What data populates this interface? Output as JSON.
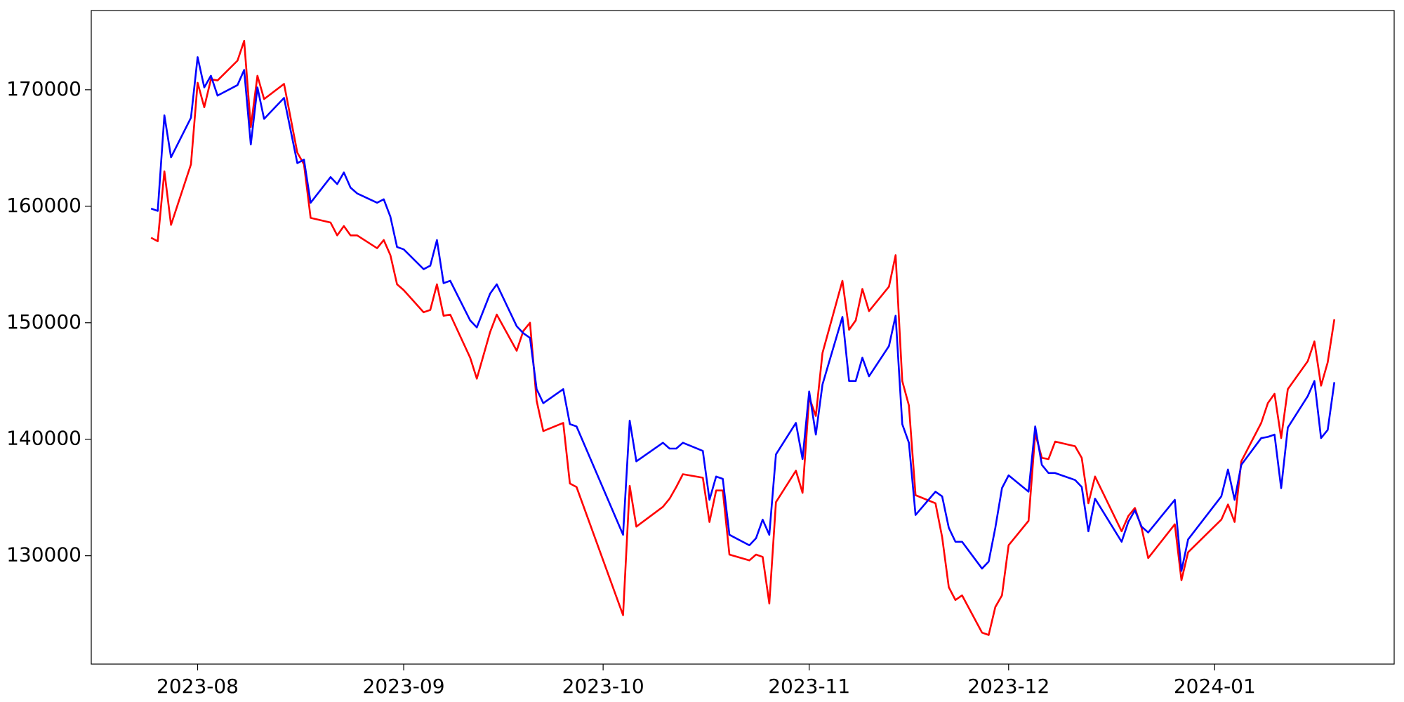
{
  "chart_data": {
    "type": "line",
    "x": [
      "2023-07-25",
      "2023-07-26",
      "2023-07-27",
      "2023-07-28",
      "2023-07-31",
      "2023-08-01",
      "2023-08-02",
      "2023-08-03",
      "2023-08-04",
      "2023-08-07",
      "2023-08-08",
      "2023-08-09",
      "2023-08-10",
      "2023-08-11",
      "2023-08-14",
      "2023-08-16",
      "2023-08-17",
      "2023-08-18",
      "2023-08-21",
      "2023-08-22",
      "2023-08-23",
      "2023-08-24",
      "2023-08-25",
      "2023-08-28",
      "2023-08-29",
      "2023-08-30",
      "2023-08-31",
      "2023-09-01",
      "2023-09-04",
      "2023-09-05",
      "2023-09-06",
      "2023-09-07",
      "2023-09-08",
      "2023-09-11",
      "2023-09-12",
      "2023-09-14",
      "2023-09-15",
      "2023-09-18",
      "2023-09-19",
      "2023-09-20",
      "2023-09-21",
      "2023-09-22",
      "2023-09-25",
      "2023-09-26",
      "2023-09-27",
      "2023-10-04",
      "2023-10-05",
      "2023-10-06",
      "2023-10-10",
      "2023-10-11",
      "2023-10-12",
      "2023-10-13",
      "2023-10-16",
      "2023-10-17",
      "2023-10-18",
      "2023-10-19",
      "2023-10-20",
      "2023-10-23",
      "2023-10-24",
      "2023-10-25",
      "2023-10-26",
      "2023-10-27",
      "2023-10-30",
      "2023-10-31",
      "2023-11-01",
      "2023-11-02",
      "2023-11-03",
      "2023-11-06",
      "2023-11-07",
      "2023-11-08",
      "2023-11-09",
      "2023-11-10",
      "2023-11-13",
      "2023-11-14",
      "2023-11-15",
      "2023-11-16",
      "2023-11-17",
      "2023-11-20",
      "2023-11-21",
      "2023-11-22",
      "2023-11-23",
      "2023-11-24",
      "2023-11-27",
      "2023-11-28",
      "2023-11-29",
      "2023-11-30",
      "2023-12-01",
      "2023-12-04",
      "2023-12-05",
      "2023-12-06",
      "2023-12-07",
      "2023-12-08",
      "2023-12-11",
      "2023-12-12",
      "2023-12-13",
      "2023-12-14",
      "2023-12-18",
      "2023-12-19",
      "2023-12-20",
      "2023-12-21",
      "2023-12-22",
      "2023-12-26",
      "2023-12-27",
      "2023-12-28",
      "2024-01-02",
      "2024-01-03",
      "2024-01-04",
      "2024-01-05",
      "2024-01-08",
      "2024-01-09",
      "2024-01-10",
      "2024-01-11",
      "2024-01-12",
      "2024-01-15",
      "2024-01-16",
      "2024-01-17",
      "2024-01-18",
      "2024-01-19"
    ],
    "series": [
      {
        "color": "#ff0000",
        "values": [
          157300,
          157000,
          163000,
          158400,
          163600,
          170600,
          168500,
          170900,
          170800,
          172500,
          174200,
          166800,
          171200,
          169200,
          170500,
          164600,
          163600,
          159000,
          158600,
          157500,
          158300,
          157500,
          157500,
          156400,
          157100,
          155800,
          153300,
          152800,
          150900,
          151100,
          153300,
          150600,
          150700,
          147000,
          145200,
          149200,
          150700,
          147600,
          149300,
          150000,
          143300,
          140700,
          141400,
          136200,
          135900,
          124900,
          136000,
          132500,
          134200,
          134900,
          135900,
          137000,
          136700,
          132900,
          135600,
          135600,
          130100,
          129600,
          130100,
          129900,
          125900,
          134600,
          137300,
          135400,
          143600,
          142000,
          147400,
          153600,
          149400,
          150200,
          152900,
          151000,
          153100,
          155800,
          145000,
          142900,
          135200,
          134500,
          131600,
          127300,
          126200,
          126600,
          123400,
          123200,
          125600,
          126600,
          130900,
          133000,
          140500,
          138400,
          138300,
          139800,
          139400,
          138400,
          134500,
          136800,
          132100,
          133400,
          134100,
          132400,
          129800,
          132700,
          127900,
          130300,
          133100,
          134400,
          132900,
          138100,
          141400,
          143100,
          143900,
          140100,
          144300,
          146700,
          148400,
          144600,
          146600,
          150300
        ]
      },
      {
        "color": "#0000ff",
        "values": [
          159800,
          159600,
          167800,
          164200,
          167600,
          172800,
          170200,
          171200,
          169500,
          170400,
          171700,
          165300,
          170200,
          167500,
          169300,
          163700,
          164000,
          160300,
          162500,
          161900,
          162900,
          161600,
          161100,
          160300,
          160600,
          159100,
          156500,
          156300,
          154600,
          154900,
          157100,
          153400,
          153600,
          150200,
          149600,
          152500,
          153300,
          149700,
          149100,
          148700,
          144300,
          143100,
          144300,
          141300,
          141100,
          131800,
          141600,
          138100,
          139700,
          139200,
          139200,
          139700,
          139000,
          134800,
          136800,
          136600,
          131800,
          130900,
          131500,
          133100,
          131800,
          138700,
          141400,
          138300,
          144100,
          140400,
          144700,
          150500,
          145000,
          145000,
          147000,
          145400,
          148000,
          150600,
          141300,
          139700,
          133500,
          135500,
          135100,
          132400,
          131200,
          131200,
          128900,
          129500,
          132400,
          135800,
          136900,
          135500,
          141100,
          137800,
          137100,
          137100,
          136500,
          135900,
          132100,
          134900,
          131200,
          132900,
          133900,
          132500,
          132000,
          134800,
          128700,
          131400,
          135100,
          137400,
          134800,
          137800,
          140100,
          140200,
          140400,
          135800,
          141000,
          143700,
          145000,
          140100,
          140800,
          144900
        ]
      }
    ],
    "xlim": [
      "2023-07-16",
      "2024-01-28"
    ],
    "xticks": [
      {
        "value": "2023-08-01",
        "label": "2023-08"
      },
      {
        "value": "2023-09-01",
        "label": "2023-09"
      },
      {
        "value": "2023-10-01",
        "label": "2023-10"
      },
      {
        "value": "2023-11-01",
        "label": "2023-11"
      },
      {
        "value": "2023-12-01",
        "label": "2023-12"
      },
      {
        "value": "2024-01-01",
        "label": "2024-01"
      }
    ],
    "ylim": [
      120700,
      176800
    ],
    "yticks": [
      130000,
      140000,
      150000,
      160000,
      170000
    ],
    "grid": false
  }
}
